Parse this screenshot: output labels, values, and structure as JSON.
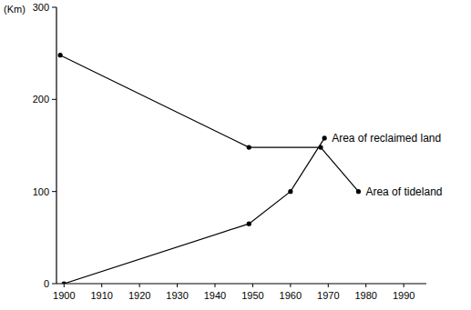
{
  "chart_data": {
    "type": "line",
    "y_label": "(Km)",
    "xlim": [
      1898,
      1996
    ],
    "xticks": [
      1900,
      1910,
      1920,
      1930,
      1940,
      1950,
      1960,
      1970,
      1980,
      1990
    ],
    "ylim": [
      0,
      300
    ],
    "yticks": [
      0,
      100,
      200,
      300
    ],
    "grid": false,
    "marker": "circle",
    "series": [
      {
        "name": "Area of reclaimed land",
        "color": "#000000",
        "x": [
          1900,
          1949,
          1960,
          1969
        ],
        "values": [
          0,
          65,
          100,
          158
        ]
      },
      {
        "name": "Area of tideland",
        "color": "#000000",
        "x": [
          1899,
          1949,
          1968,
          1978
        ],
        "values": [
          248,
          148,
          148,
          100
        ]
      }
    ]
  }
}
